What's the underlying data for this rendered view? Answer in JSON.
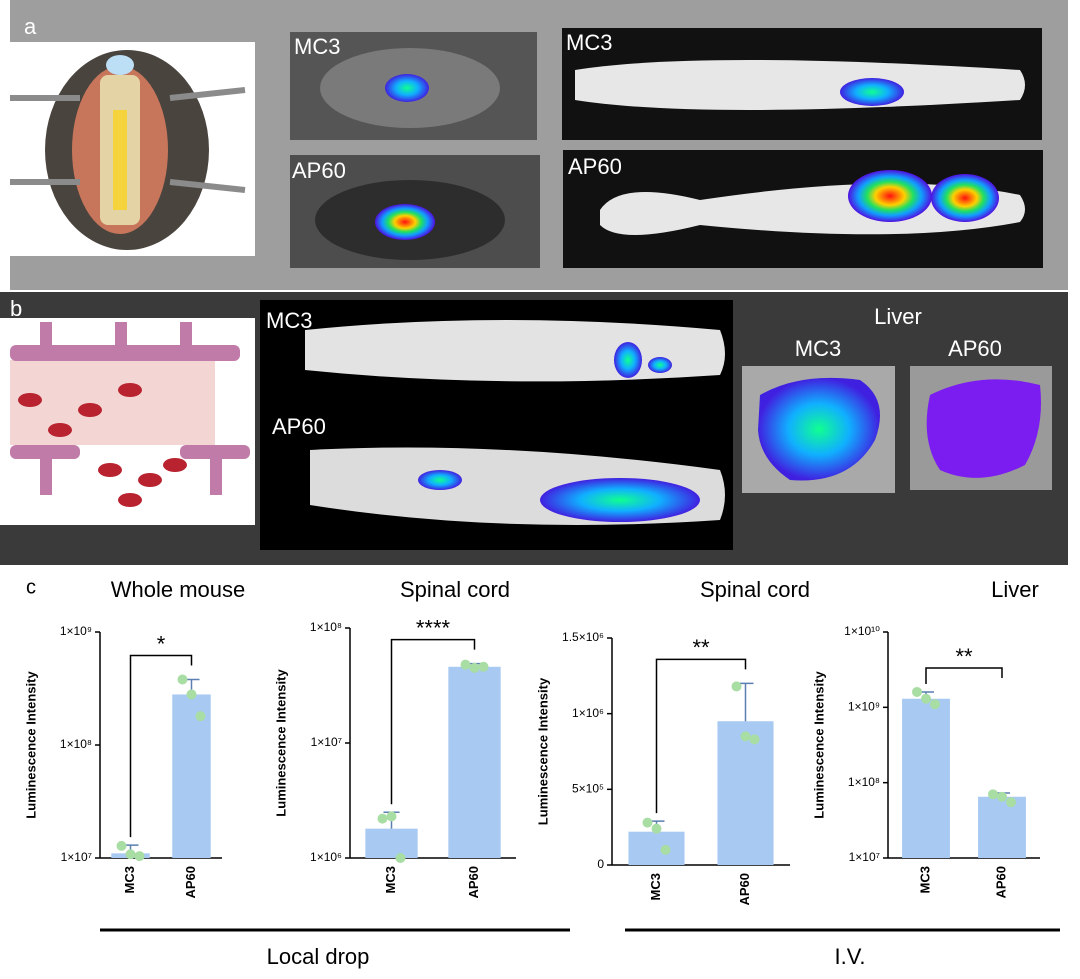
{
  "figure": {
    "panels": [
      "a",
      "b",
      "c"
    ],
    "images": [
      "MC3",
      "AP60",
      "MC3",
      "AP60",
      "MC3",
      "AP60",
      "Liver",
      "MC3",
      "AP60"
    ],
    "groups": [
      "Local drop",
      "I.V."
    ]
  },
  "chart_data": [
    {
      "type": "bar",
      "title": "Whole mouse",
      "ylabel": "Luminescence Intensity",
      "categories": [
        "MC3",
        "AP60"
      ],
      "values": [
        11000000,
        280000000
      ],
      "errors": [
        2000000,
        100000000
      ],
      "points": [
        [
          12800000,
          10800000,
          10400000
        ],
        [
          380000000,
          280000000,
          180000000
        ]
      ],
      "significance": "*",
      "log": true,
      "ylim": [
        10000000,
        1000000000
      ],
      "yticks": [
        {
          "value": 10000000,
          "label": "1×10⁷"
        },
        {
          "value": 100000000,
          "label": "1×10⁸"
        },
        {
          "value": 1000000000,
          "label": "1×10⁹"
        }
      ],
      "color": "#a7c9f2",
      "point_color": "#a8dda3"
    },
    {
      "type": "bar",
      "title": "Spinal cord",
      "ylabel": "Luminescence Intensity",
      "categories": [
        "MC3",
        "AP60"
      ],
      "values": [
        1800000,
        46000000
      ],
      "errors": [
        700000,
        3000000
      ],
      "points": [
        [
          2200000,
          2300000,
          1000000
        ],
        [
          48000000,
          45000000,
          46000000
        ]
      ],
      "significance": "****",
      "log": true,
      "ylim": [
        1000000,
        100000000
      ],
      "yticks": [
        {
          "value": 1000000,
          "label": "1×10⁶"
        },
        {
          "value": 10000000,
          "label": "1×10⁷"
        },
        {
          "value": 100000000,
          "label": "1×10⁸"
        }
      ],
      "color": "#a7c9f2",
      "point_color": "#a8dda3"
    },
    {
      "type": "bar",
      "title": "Spinal cord",
      "ylabel": "Luminescence Intensity",
      "categories": [
        "MC3",
        "AP60"
      ],
      "values": [
        220000,
        950000
      ],
      "errors": [
        70000,
        250000
      ],
      "points": [
        [
          280000,
          240000,
          100000
        ],
        [
          1180000,
          850000,
          830000
        ]
      ],
      "significance": "**",
      "log": false,
      "ylim": [
        0,
        1500000
      ],
      "yticks": [
        0,
        {
          "value": 500000,
          "label": "5×10⁵"
        },
        {
          "value": 1000000,
          "label": "1×10⁶"
        },
        {
          "value": 1500000,
          "label": "1.5×10⁶"
        }
      ],
      "color": "#a7c9f2",
      "point_color": "#a8dda3"
    },
    {
      "type": "bar",
      "title": "Liver",
      "ylabel": "Luminescence Intensity",
      "categories": [
        "MC3",
        "AP60"
      ],
      "values": [
        1300000000,
        65000000
      ],
      "errors": [
        300000000,
        8000000
      ],
      "points": [
        [
          1600000000,
          1300000000,
          1100000000
        ],
        [
          70000000,
          65000000,
          55000000
        ]
      ],
      "significance": "**",
      "log": true,
      "ylim": [
        10000000,
        10000000000
      ],
      "yticks": [
        {
          "value": 10000000,
          "label": "1×10⁷"
        },
        {
          "value": 100000000,
          "label": "1×10⁸"
        },
        {
          "value": 1000000000,
          "label": "1×10⁹"
        },
        {
          "value": 10000000000,
          "label": "1×10¹⁰"
        }
      ],
      "color": "#a7c9f2",
      "point_color": "#a8dda3"
    }
  ]
}
